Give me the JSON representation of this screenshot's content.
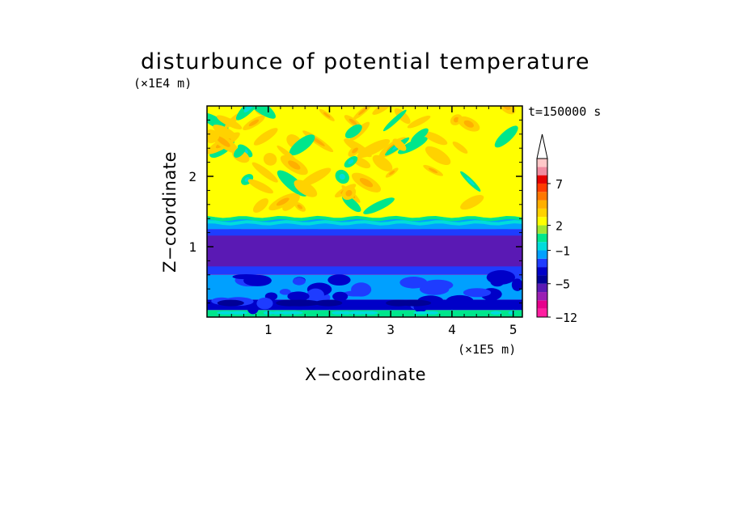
{
  "chart_data": {
    "type": "heatmap",
    "title": "disturbunce of potential temperature",
    "xlabel": "X−coordinate",
    "ylabel": "Z−coordinate",
    "x_unit": "(×1E5 m)",
    "y_unit": "(×1E4 m)",
    "time_label": "t=150000 s",
    "xlim": [
      0,
      5.15
    ],
    "ylim": [
      0,
      3.0
    ],
    "x_ticks": [
      1,
      2,
      3,
      4,
      5
    ],
    "y_ticks": [
      1,
      2
    ],
    "colorbar": {
      "levels": [
        -12,
        -10,
        -8,
        -6,
        -5,
        -4,
        -3,
        -2,
        -1,
        0,
        1,
        2,
        3,
        4,
        5,
        6,
        7,
        8,
        9
      ],
      "tick_labels": [
        "−12",
        "−5",
        "−1",
        "2",
        "7"
      ],
      "tick_values": [
        -12,
        -5,
        -1,
        2,
        7
      ],
      "colors": [
        "#ff1ea0",
        "#e6008c",
        "#9b1fb4",
        "#5a19b4",
        "#000096",
        "#0000c8",
        "#1e3cff",
        "#00a0ff",
        "#00dcdc",
        "#00e68c",
        "#a0e632",
        "#ffff00",
        "#ffd200",
        "#ffaf00",
        "#ff7800",
        "#ff3c00",
        "#e60000",
        "#f08ca0",
        "#ffc8c8"
      ],
      "extend": "max"
    },
    "bands": [
      {
        "z_from": 0.0,
        "z_to": 0.1,
        "value": 0.5
      },
      {
        "z_from": 0.1,
        "z_to": 0.25,
        "value": -3.5
      },
      {
        "z_from": 0.25,
        "z_to": 0.6,
        "value": -1.5
      },
      {
        "z_from": 0.6,
        "z_to": 1.25,
        "value": -5.5
      },
      {
        "z_from": 1.25,
        "z_to": 1.4,
        "value": -1.5
      },
      {
        "z_from": 1.4,
        "z_to": 3.0,
        "value": 2.5
      }
    ]
  }
}
